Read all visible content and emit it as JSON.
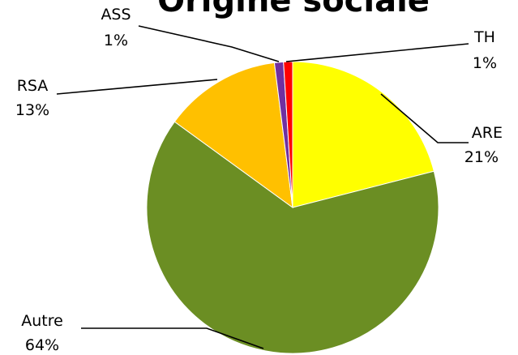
{
  "chart_data": {
    "type": "pie",
    "title": "Origine sociale",
    "start_angle_deg": 0,
    "direction": "clockwise",
    "slices": [
      {
        "label": "ARE",
        "value": 21,
        "display": "21%",
        "color": "#FFFF00"
      },
      {
        "label": "Autre",
        "value": 64,
        "display": "64%",
        "color": "#6B8E23"
      },
      {
        "label": "RSA",
        "value": 13,
        "display": "13%",
        "color": "#FFC000"
      },
      {
        "label": "ASS",
        "value": 1,
        "display": "1%",
        "color": "#7030A0"
      },
      {
        "label": "TH",
        "value": 1,
        "display": "1%",
        "color": "#FF0000"
      }
    ]
  }
}
